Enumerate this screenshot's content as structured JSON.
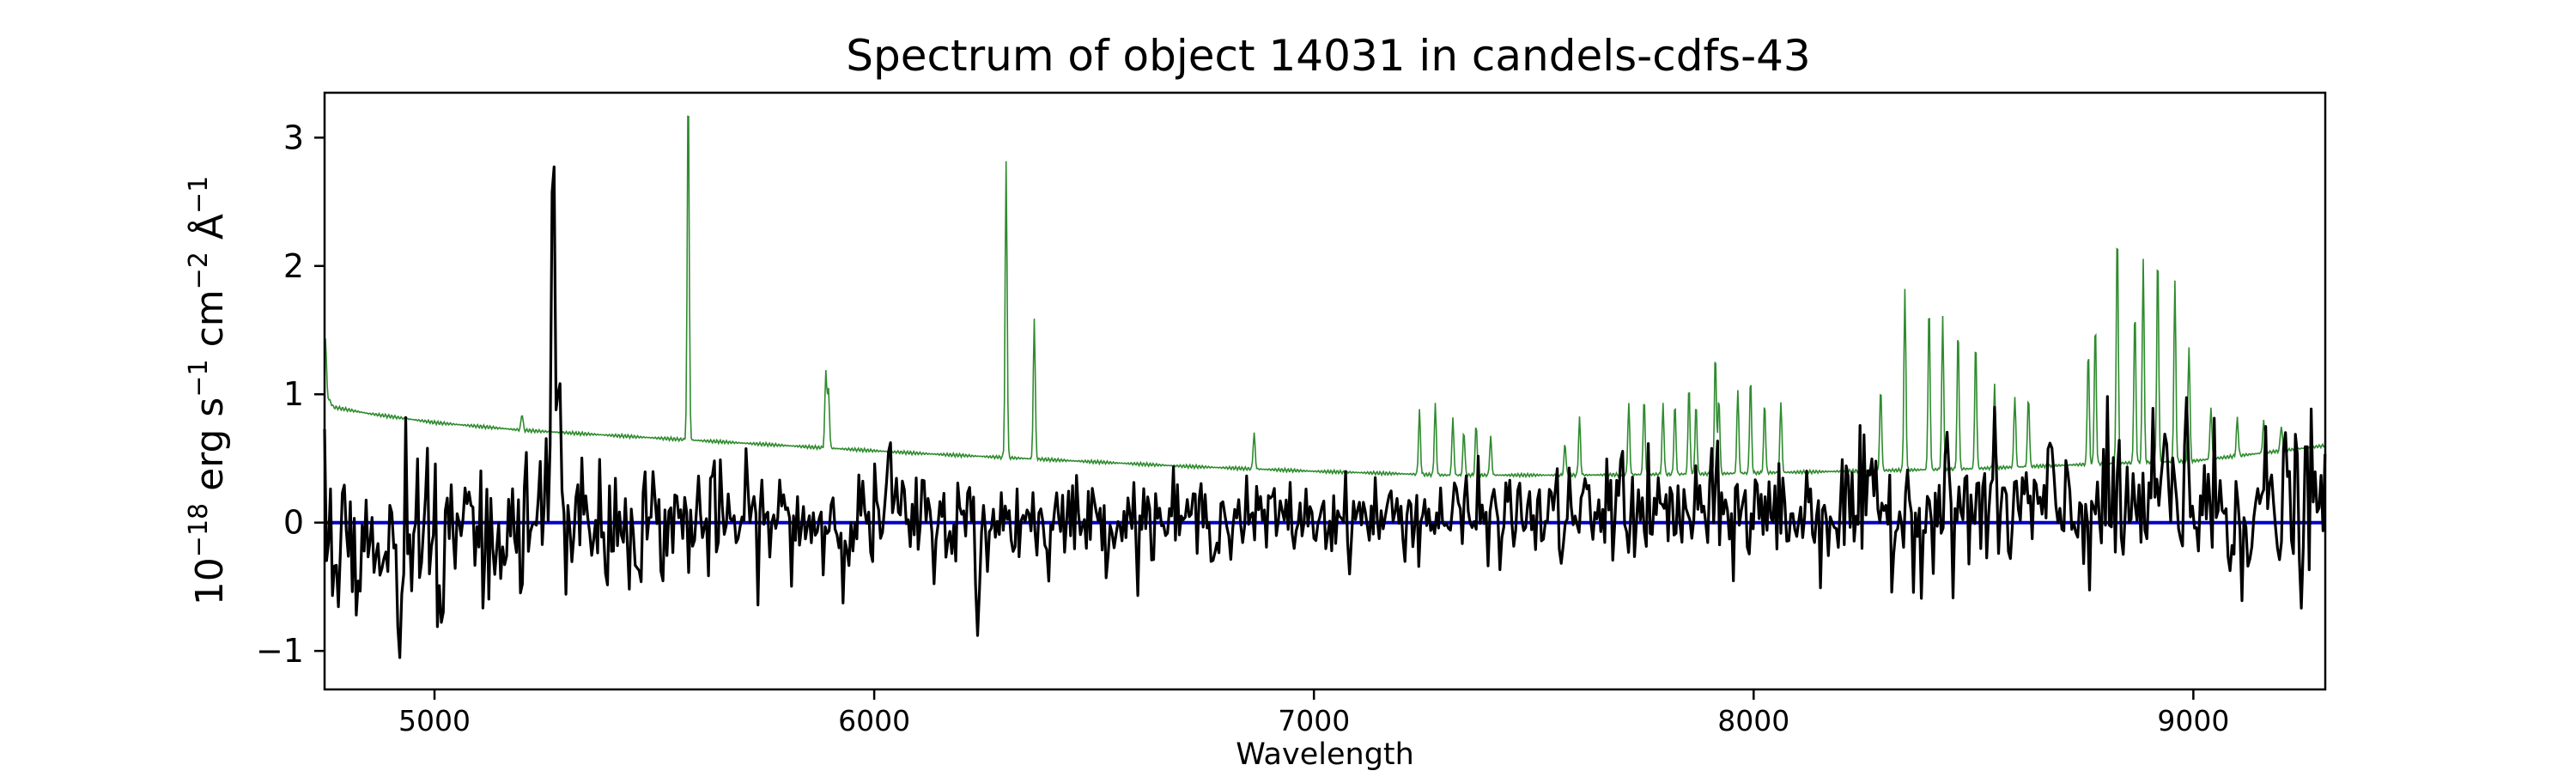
{
  "chart_data": {
    "type": "line",
    "title": "Spectrum of object 14031 in candels-cdfs-43",
    "xlabel": "Wavelength",
    "ylabel_parts": {
      "base": "10",
      "exp1": "−18",
      "erg": " erg s",
      "exp2": "−1",
      "cm": " cm",
      "exp3": "−2",
      "ang": " Å",
      "exp4": "−1"
    },
    "xlim": [
      4750,
      9300
    ],
    "ylim": [
      -1.3,
      3.35
    ],
    "xticks": [
      5000,
      6000,
      7000,
      8000,
      9000
    ],
    "yticks": [
      -1,
      0,
      1,
      2,
      3
    ],
    "ytick_labels": [
      "−1",
      "0",
      "1",
      "2",
      "3"
    ],
    "grid": false,
    "legend": "none",
    "series": [
      {
        "role": "sky",
        "color": "#2e8b2e",
        "baseline": [
          [
            4750,
            1.0
          ],
          [
            4760,
            0.96
          ],
          [
            4770,
            0.9
          ],
          [
            4850,
            0.85
          ],
          [
            5000,
            0.78
          ],
          [
            5200,
            0.72
          ],
          [
            5500,
            0.66
          ],
          [
            5800,
            0.6
          ],
          [
            6100,
            0.54
          ],
          [
            6400,
            0.49
          ],
          [
            6700,
            0.44
          ],
          [
            7000,
            0.4
          ],
          [
            7300,
            0.37
          ],
          [
            7600,
            0.37
          ],
          [
            7900,
            0.38
          ],
          [
            8200,
            0.4
          ],
          [
            8500,
            0.42
          ],
          [
            8800,
            0.46
          ],
          [
            9000,
            0.48
          ],
          [
            9300,
            0.6
          ]
        ],
        "lines": [
          [
            4752,
            0.45
          ],
          [
            5199,
            0.13
          ],
          [
            5577,
            2.8
          ],
          [
            5890,
            0.6
          ],
          [
            5896,
            0.45
          ],
          [
            6300,
            2.3
          ],
          [
            6364,
            1.1
          ],
          [
            6864,
            0.28
          ],
          [
            7240,
            0.5
          ],
          [
            7276,
            0.55
          ],
          [
            7316,
            0.45
          ],
          [
            7341,
            0.35
          ],
          [
            7369,
            0.4
          ],
          [
            7402,
            0.3
          ],
          [
            7571,
            0.25
          ],
          [
            7604,
            0.45
          ],
          [
            7716,
            0.55
          ],
          [
            7751,
            0.6
          ],
          [
            7794,
            0.55
          ],
          [
            7821,
            0.55
          ],
          [
            7853,
            0.7
          ],
          [
            7869,
            0.55
          ],
          [
            7913,
            0.95
          ],
          [
            7921,
            0.6
          ],
          [
            7964,
            0.65
          ],
          [
            7993,
            0.75
          ],
          [
            8025,
            0.55
          ],
          [
            8062,
            0.55
          ],
          [
            8289,
            0.65
          ],
          [
            8344,
            1.4
          ],
          [
            8399,
            1.3
          ],
          [
            8430,
            1.2
          ],
          [
            8465,
            1.1
          ],
          [
            8505,
            1.0
          ],
          [
            8548,
            0.65
          ],
          [
            8594,
            0.55
          ],
          [
            8625,
            0.55
          ],
          [
            8761,
            0.9
          ],
          [
            8777,
            1.1
          ],
          [
            8827,
            1.85
          ],
          [
            8867,
            1.2
          ],
          [
            8886,
            1.6
          ],
          [
            8919,
            1.65
          ],
          [
            8958,
            1.4
          ],
          [
            8990,
            0.9
          ],
          [
            9040,
            0.4
          ],
          [
            9100,
            0.3
          ],
          [
            9160,
            0.25
          ],
          [
            9200,
            0.2
          ]
        ]
      },
      {
        "role": "zero",
        "color": "#0000cc",
        "values": [
          [
            4750,
            0
          ],
          [
            9300,
            0
          ]
        ]
      },
      {
        "role": "flux",
        "color": "#000000",
        "noise_envelope": [
          [
            4750,
            0.35
          ],
          [
            5200,
            0.3
          ],
          [
            5600,
            0.25
          ],
          [
            6000,
            0.22
          ],
          [
            6500,
            0.18
          ],
          [
            7000,
            0.16
          ],
          [
            7500,
            0.2
          ],
          [
            8000,
            0.25
          ],
          [
            8500,
            0.3
          ],
          [
            9000,
            0.35
          ],
          [
            9300,
            0.35
          ]
        ],
        "mean_offset": [
          [
            4750,
            -0.1
          ],
          [
            5500,
            0.0
          ],
          [
            7500,
            0.05
          ],
          [
            8500,
            0.1
          ],
          [
            9300,
            0.1
          ]
        ],
        "features": [
          [
            5270,
            3.15
          ],
          [
            5283,
            1.2
          ],
          [
            6235,
            -0.88
          ],
          [
            4920,
            -1.08
          ],
          [
            6035,
            0.68
          ],
          [
            7700,
            0.6
          ],
          [
            8984,
            0.98
          ],
          [
            8934,
            0.7
          ]
        ]
      }
    ]
  }
}
